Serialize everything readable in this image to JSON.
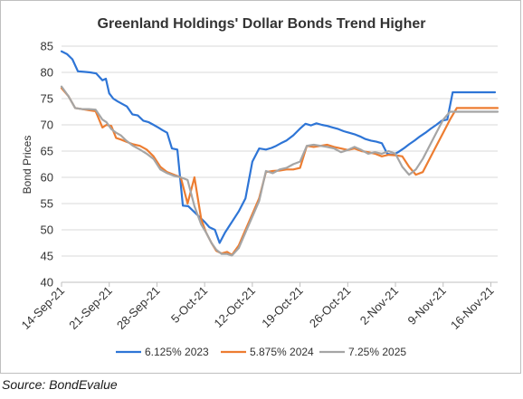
{
  "chart_data": {
    "type": "line",
    "title": "Greenland Holdings' Dollar Bonds Trend Higher",
    "ylabel": "Bond Prices",
    "xlabel": "",
    "ylim": [
      40,
      85
    ],
    "yticks": [
      40,
      45,
      50,
      55,
      60,
      65,
      70,
      75,
      80,
      85
    ],
    "grid": "horizontal",
    "legend_position": "bottom",
    "x_tick_labels": [
      "14-Sep-21",
      "21-Sep-21",
      "28-Sep-21",
      "5-Oct-21",
      "12-Oct-21",
      "19-Oct-21",
      "26-Oct-21",
      "2-Nov-21",
      "9-Nov-21",
      "16-Nov-21"
    ],
    "x_tick_days": [
      0,
      7,
      14,
      21,
      28,
      35,
      42,
      49,
      56,
      63
    ],
    "series": [
      {
        "name": "6.125% 2023",
        "color": "#2e75d6",
        "x": [
          0,
          0.8,
          1.6,
          2.4,
          3.3,
          4.2,
          5.1,
          6.0,
          6.5,
          7.0,
          7.6,
          8.2,
          8.9,
          9.6,
          10.4,
          11.2,
          12.0,
          12.8,
          13.5,
          14.2,
          14.8,
          15.5,
          16.2,
          17.0,
          17.8,
          18.6,
          19.4,
          20.2,
          21.0,
          21.7,
          22.5,
          23.2,
          24.0,
          25.0,
          26.0,
          27.0,
          28.0,
          29.0,
          30.0,
          30.8,
          31.5,
          32.2,
          33.0,
          34.0,
          35.0,
          35.8,
          36.6,
          37.4,
          38.2,
          39.0,
          39.8,
          40.6,
          41.4,
          42.2,
          43.0,
          43.8,
          44.6,
          45.4,
          46.2,
          47.0,
          47.8,
          48.6,
          49.4,
          50.2,
          51.0,
          51.8,
          52.6,
          53.4,
          54.2,
          55.0,
          55.8,
          56.6,
          57.4,
          58.2,
          59.0,
          60.0,
          61.0,
          62.0,
          63.0,
          63.6
        ],
        "y": [
          84.0,
          83.5,
          82.5,
          80.2,
          80.1,
          80.0,
          79.8,
          78.5,
          78.8,
          76.0,
          75.0,
          74.5,
          74.0,
          73.5,
          72.0,
          71.8,
          70.8,
          70.5,
          70.0,
          69.5,
          69.0,
          68.5,
          65.5,
          65.3,
          54.6,
          54.5,
          53.5,
          52.5,
          51.5,
          50.5,
          50.0,
          47.5,
          49.5,
          51.5,
          53.5,
          56.0,
          63.0,
          65.5,
          65.3,
          65.6,
          66.0,
          66.5,
          67.0,
          68.0,
          69.3,
          70.2,
          69.9,
          70.3,
          70.0,
          69.8,
          69.5,
          69.2,
          68.8,
          68.5,
          68.2,
          67.8,
          67.3,
          67.0,
          66.8,
          66.5,
          64.5,
          64.3,
          64.8,
          65.5,
          66.3,
          67.0,
          67.8,
          68.5,
          69.3,
          70.0,
          70.8,
          71.0,
          76.2,
          76.2,
          76.2,
          76.2,
          76.2,
          76.2,
          76.2,
          76.2
        ],
        "note": ""
      },
      {
        "name": "5.875% 2024",
        "color": "#ed7d31",
        "x": [
          0,
          1.0,
          2.0,
          3.0,
          4.0,
          5.0,
          6.0,
          6.6,
          7.3,
          8.0,
          8.7,
          9.5,
          10.5,
          11.5,
          12.5,
          13.5,
          14.5,
          15.5,
          16.5,
          17.5,
          18.5,
          19.5,
          20.5,
          21.2,
          22.0,
          22.7,
          23.5,
          24.3,
          25.0,
          26.0,
          27.0,
          28.0,
          29.0,
          30.0,
          31.0,
          32.0,
          33.0,
          34.0,
          35.0,
          36.0,
          37.0,
          38.0,
          39.0,
          40.0,
          41.0,
          42.0,
          43.0,
          44.0,
          45.0,
          46.0,
          47.0,
          48.0,
          49.0,
          50.0,
          51.0,
          52.0,
          53.0,
          54.0,
          55.0,
          56.0,
          57.0,
          58.0,
          59.0,
          60.0,
          61.0,
          62.0,
          63.0,
          64.0
        ],
        "y": [
          77.0,
          75.5,
          73.2,
          73.0,
          72.8,
          72.6,
          69.5,
          70.0,
          69.8,
          67.5,
          67.2,
          66.8,
          66.3,
          66.0,
          65.3,
          64.0,
          62.0,
          61.0,
          60.5,
          60.0,
          55.0,
          60.0,
          52.0,
          49.5,
          47.5,
          46.0,
          45.5,
          45.8,
          45.2,
          47.0,
          50.0,
          53.0,
          56.0,
          61.0,
          61.2,
          61.3,
          61.5,
          61.5,
          61.8,
          66.0,
          65.8,
          66.0,
          66.2,
          65.8,
          65.5,
          65.2,
          65.5,
          65.0,
          64.8,
          64.5,
          64.0,
          64.3,
          64.2,
          64.0,
          62.0,
          60.5,
          61.0,
          63.5,
          66.0,
          68.5,
          71.0,
          73.2,
          73.2,
          73.2,
          73.2,
          73.2,
          73.2,
          73.2
        ],
        "note": ""
      },
      {
        "name": "7.25% 2025",
        "color": "#a5a5a5",
        "x": [
          0,
          1.0,
          2.0,
          3.0,
          4.0,
          5.0,
          6.0,
          6.6,
          7.3,
          8.0,
          8.7,
          9.5,
          10.5,
          11.5,
          12.5,
          13.5,
          14.5,
          15.5,
          16.5,
          17.5,
          18.5,
          19.5,
          20.5,
          21.2,
          22.0,
          22.7,
          23.5,
          24.3,
          25.0,
          26.0,
          27.0,
          28.0,
          29.0,
          30.0,
          31.0,
          32.0,
          33.0,
          34.0,
          35.0,
          36.0,
          37.0,
          38.0,
          39.0,
          40.0,
          41.0,
          42.0,
          43.0,
          44.0,
          45.0,
          46.0,
          47.0,
          48.0,
          49.0,
          50.0,
          51.0,
          52.0,
          53.0,
          54.0,
          55.0,
          56.0,
          57.0,
          58.0,
          59.0,
          60.0,
          61.0,
          62.0,
          63.0,
          64.0
        ],
        "y": [
          77.3,
          75.5,
          73.2,
          73.0,
          73.0,
          72.9,
          71.0,
          70.5,
          69.2,
          68.5,
          68.0,
          67.0,
          66.0,
          65.3,
          64.5,
          63.5,
          61.5,
          60.8,
          60.3,
          60.0,
          59.5,
          54.5,
          51.0,
          49.5,
          47.5,
          46.2,
          45.4,
          45.4,
          45.1,
          46.5,
          49.5,
          52.5,
          55.5,
          61.2,
          60.8,
          61.5,
          61.8,
          62.5,
          63.0,
          66.0,
          66.2,
          66.0,
          65.8,
          65.5,
          64.8,
          65.2,
          65.8,
          65.2,
          64.5,
          64.8,
          64.5,
          65.0,
          64.5,
          62.0,
          60.5,
          61.5,
          63.5,
          66.0,
          68.5,
          71.0,
          72.5,
          72.5,
          72.5,
          72.5,
          72.5,
          72.5,
          72.5,
          72.5
        ],
        "note": ""
      }
    ]
  },
  "source": "Source: BondEvalue"
}
